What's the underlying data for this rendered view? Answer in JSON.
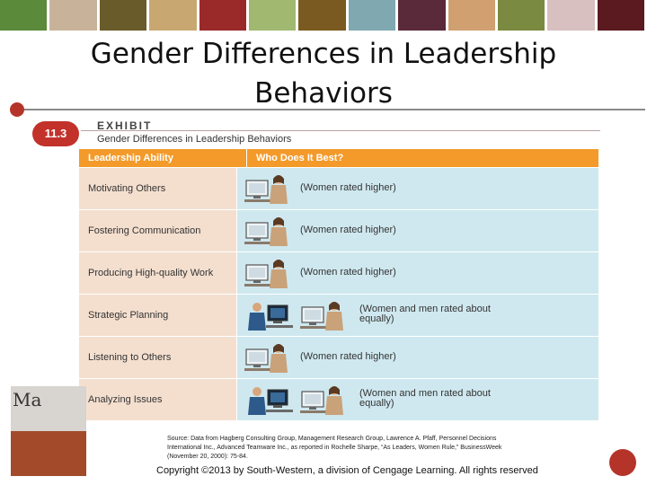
{
  "top_bar_colors": [
    "#5b8a3a",
    "#c8b39a",
    "#6a5b2a",
    "#c8a870",
    "#9a2a2a",
    "#a0b870",
    "#7a5a20",
    "#7fa8b0",
    "#5a2a3a",
    "#d0a070",
    "#7a8a40",
    "#d8c0c0",
    "#5a1a20"
  ],
  "slide_title": "Gender Differences in Leadership Behaviors",
  "exhibit": {
    "badge": "11.3",
    "word": "EXHIBIT",
    "subtitle": "Gender Differences in Leadership Behaviors"
  },
  "table": {
    "headers": [
      "Leadership Ability",
      "Who Does It Best?"
    ],
    "rows": [
      {
        "ability": "Motivating Others",
        "figure": "woman-icon",
        "rating": "(Women rated higher)"
      },
      {
        "ability": "Fostering Communication",
        "figure": "woman-icon",
        "rating": "(Women rated higher)"
      },
      {
        "ability": "Producing High-quality Work",
        "figure": "woman-icon",
        "rating": "(Women rated higher)"
      },
      {
        "ability": "Strategic Planning",
        "figure": "man-and-woman-icon",
        "rating": "(Women and men rated about equally)"
      },
      {
        "ability": "Listening to Others",
        "figure": "woman-icon",
        "rating": "(Women rated higher)"
      },
      {
        "ability": "Analyzing Issues",
        "figure": "man-and-woman-icon",
        "rating": "(Women and men rated about equally)"
      }
    ]
  },
  "source_note": "Source: Data from Hagberg Consulting Group, Management Research Group, Lawrence A. Pfaff, Personnel Decisions International Inc., Advanced Teamware Inc., as reported in Rochelle Sharpe, “As Leaders, Women Rule,” BusinessWeek (November 20, 2000): 75-84.",
  "book_cover_text": "Ma",
  "copyright": "Copyright ©2013 by South-Western, a division of Cengage Learning. All rights reserved",
  "colors": {
    "header_orange": "#f39a2a",
    "left_cell": "#f4dfcf",
    "right_cell": "#cfe8ef",
    "accent_red": "#b5342a"
  }
}
